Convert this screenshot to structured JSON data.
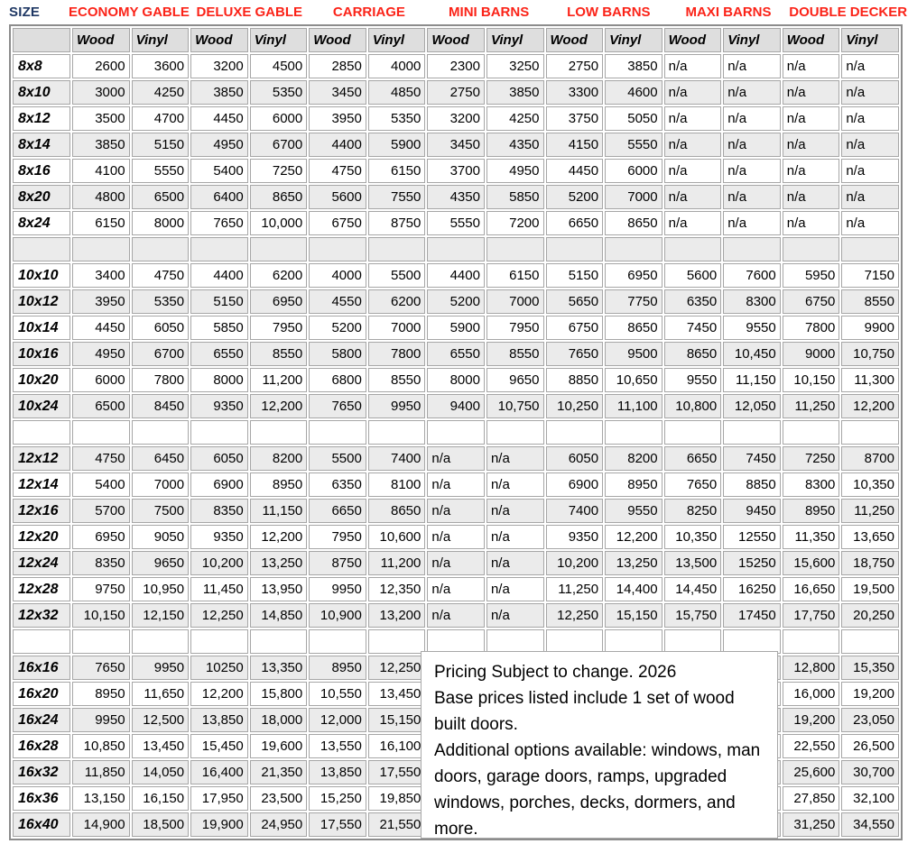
{
  "header": {
    "size_label": "SIZE",
    "categories": [
      "ECONOMY GABLE",
      "DELUXE GABLE",
      "CARRIAGE",
      "MINI BARNS",
      "LOW BARNS",
      "MAXI BARNS",
      "DOUBLE DECKER"
    ],
    "sub_headers": [
      "Wood",
      "Vinyl",
      "Wood",
      "Vinyl",
      "Wood",
      "Vinyl",
      "Wood",
      "Vinyl",
      "Wood",
      "Vinyl",
      "Wood",
      "Vinyl",
      "Wood",
      "Vinyl"
    ],
    "colors": {
      "category_red": "#fb2318",
      "size_navy": "#1f3864",
      "grid_gray": "#a6a6a6",
      "header_bg": "#dedede",
      "stripe_bg": "#ebebeb"
    }
  },
  "table": {
    "rows": [
      {
        "size": "8x8",
        "values": [
          "2600",
          "3600",
          "3200",
          "4500",
          "2850",
          "4000",
          "2300",
          "3250",
          "2750",
          "3850",
          "n/a",
          "n/a",
          "n/a",
          "n/a"
        ]
      },
      {
        "size": "8x10",
        "values": [
          "3000",
          "4250",
          "3850",
          "5350",
          "3450",
          "4850",
          "2750",
          "3850",
          "3300",
          "4600",
          "n/a",
          "n/a",
          "n/a",
          "n/a"
        ]
      },
      {
        "size": "8x12",
        "values": [
          "3500",
          "4700",
          "4450",
          "6000",
          "3950",
          "5350",
          "3200",
          "4250",
          "3750",
          "5050",
          "n/a",
          "n/a",
          "n/a",
          "n/a"
        ]
      },
      {
        "size": "8x14",
        "values": [
          "3850",
          "5150",
          "4950",
          "6700",
          "4400",
          "5900",
          "3450",
          "4350",
          "4150",
          "5550",
          "n/a",
          "n/a",
          "n/a",
          "n/a"
        ]
      },
      {
        "size": "8x16",
        "values": [
          "4100",
          "5550",
          "5400",
          "7250",
          "4750",
          "6150",
          "3700",
          "4950",
          "4450",
          "6000",
          "n/a",
          "n/a",
          "n/a",
          "n/a"
        ]
      },
      {
        "size": "8x20",
        "values": [
          "4800",
          "6500",
          "6400",
          "8650",
          "5600",
          "7550",
          "4350",
          "5850",
          "5200",
          "7000",
          "n/a",
          "n/a",
          "n/a",
          "n/a"
        ]
      },
      {
        "size": "8x24",
        "values": [
          "6150",
          "8000",
          "7650",
          "10,000",
          "6750",
          "8750",
          "5550",
          "7200",
          "6650",
          "8650",
          "n/a",
          "n/a",
          "n/a",
          "n/a"
        ]
      },
      {
        "size": "",
        "values": [
          "",
          "",
          "",
          "",
          "",
          "",
          "",
          "",
          "",
          "",
          "",
          "",
          "",
          ""
        ]
      },
      {
        "size": "10x10",
        "values": [
          "3400",
          "4750",
          "4400",
          "6200",
          "4000",
          "5500",
          "4400",
          "6150",
          "5150",
          "6950",
          "5600",
          "7600",
          "5950",
          "7150"
        ]
      },
      {
        "size": "10x12",
        "values": [
          "3950",
          "5350",
          "5150",
          "6950",
          "4550",
          "6200",
          "5200",
          "7000",
          "5650",
          "7750",
          "6350",
          "8300",
          "6750",
          "8550"
        ]
      },
      {
        "size": "10x14",
        "values": [
          "4450",
          "6050",
          "5850",
          "7950",
          "5200",
          "7000",
          "5900",
          "7950",
          "6750",
          "8650",
          "7450",
          "9550",
          "7800",
          "9900"
        ]
      },
      {
        "size": "10x16",
        "values": [
          "4950",
          "6700",
          "6550",
          "8550",
          "5800",
          "7800",
          "6550",
          "8550",
          "7650",
          "9500",
          "8650",
          "10,450",
          "9000",
          "10,750"
        ]
      },
      {
        "size": "10x20",
        "values": [
          "6000",
          "7800",
          "8000",
          "11,200",
          "6800",
          "8550",
          "8000",
          "9650",
          "8850",
          "10,650",
          "9550",
          "11,150",
          "10,150",
          "11,300"
        ]
      },
      {
        "size": "10x24",
        "values": [
          "6500",
          "8450",
          "9350",
          "12,200",
          "7650",
          "9950",
          "9400",
          "10,750",
          "10,250",
          "11,100",
          "10,800",
          "12,050",
          "11,250",
          "12,200"
        ]
      },
      {
        "size": "",
        "values": [
          "",
          "",
          "",
          "",
          "",
          "",
          "",
          "",
          "",
          "",
          "",
          "",
          "",
          ""
        ]
      },
      {
        "size": "12x12",
        "values": [
          "4750",
          "6450",
          "6050",
          "8200",
          "5500",
          "7400",
          "n/a",
          "n/a",
          "6050",
          "8200",
          "6650",
          "7450",
          "7250",
          "8700"
        ]
      },
      {
        "size": "12x14",
        "values": [
          "5400",
          "7000",
          "6900",
          "8950",
          "6350",
          "8100",
          "n/a",
          "n/a",
          "6900",
          "8950",
          "7650",
          "8850",
          "8300",
          "10,350"
        ]
      },
      {
        "size": "12x16",
        "values": [
          "5700",
          "7500",
          "8350",
          "11,150",
          "6650",
          "8650",
          "n/a",
          "n/a",
          "7400",
          "9550",
          "8250",
          "9450",
          "8950",
          "11,250"
        ]
      },
      {
        "size": "12x20",
        "values": [
          "6950",
          "9050",
          "9350",
          "12,200",
          "7950",
          "10,600",
          "n/a",
          "n/a",
          "9350",
          "12,200",
          "10,350",
          "12550",
          "11,350",
          "13,650"
        ]
      },
      {
        "size": "12x24",
        "values": [
          "8350",
          "9650",
          "10,200",
          "13,250",
          "8750",
          "11,200",
          "n/a",
          "n/a",
          "10,200",
          "13,250",
          "13,500",
          "15250",
          "15,600",
          "18,750"
        ]
      },
      {
        "size": "12x28",
        "values": [
          "9750",
          "10,950",
          "11,450",
          "13,950",
          "9950",
          "12,350",
          "n/a",
          "n/a",
          "11,250",
          "14,400",
          "14,450",
          "16250",
          "16,650",
          "19,500"
        ]
      },
      {
        "size": "12x32",
        "values": [
          "10,150",
          "12,150",
          "12,250",
          "14,850",
          "10,900",
          "13,200",
          "n/a",
          "n/a",
          "12,250",
          "15,150",
          "15,750",
          "17450",
          "17,750",
          "20,250"
        ]
      },
      {
        "size": "",
        "values": [
          "",
          "",
          "",
          "",
          "",
          "",
          "",
          "",
          "",
          "",
          "",
          "",
          "",
          ""
        ]
      },
      {
        "size": "16x16",
        "values": [
          "7650",
          "9950",
          "10250",
          "13,350",
          "8950",
          "12,250",
          "",
          "",
          "",
          "",
          "",
          "",
          "12,800",
          "15,350"
        ]
      },
      {
        "size": "16x20",
        "values": [
          "8950",
          "11,650",
          "12,200",
          "15,800",
          "10,550",
          "13,450",
          "",
          "",
          "",
          "",
          "",
          "",
          "16,000",
          "19,200"
        ]
      },
      {
        "size": "16x24",
        "values": [
          "9950",
          "12,500",
          "13,850",
          "18,000",
          "12,000",
          "15,150",
          "",
          "",
          "",
          "",
          "",
          "",
          "19,200",
          "23,050"
        ]
      },
      {
        "size": "16x28",
        "values": [
          "10,850",
          "13,450",
          "15,450",
          "19,600",
          "13,550",
          "16,100",
          "",
          "",
          "",
          "",
          "",
          "",
          "22,550",
          "26,500"
        ]
      },
      {
        "size": "16x32",
        "values": [
          "11,850",
          "14,050",
          "16,400",
          "21,350",
          "13,850",
          "17,550",
          "",
          "",
          "",
          "",
          "",
          "",
          "25,600",
          "30,700"
        ]
      },
      {
        "size": "16x36",
        "values": [
          "13,150",
          "16,150",
          "17,950",
          "23,500",
          "15,250",
          "19,850",
          "",
          "",
          "",
          "",
          "",
          "",
          "27,850",
          "32,100"
        ]
      },
      {
        "size": "16x40",
        "values": [
          "14,900",
          "18,500",
          "19,900",
          "24,950",
          "17,550",
          "21,550",
          "",
          "",
          "",
          "",
          "",
          "",
          "31,250",
          "34,550"
        ]
      }
    ]
  },
  "notice": {
    "lines": [
      "Pricing Subject to change. 2026",
      "Base prices listed include 1 set of wood built doors.",
      "Additional options available: windows, man doors, garage doors, ramps, upgraded windows, porches, decks, dormers, and more."
    ]
  }
}
